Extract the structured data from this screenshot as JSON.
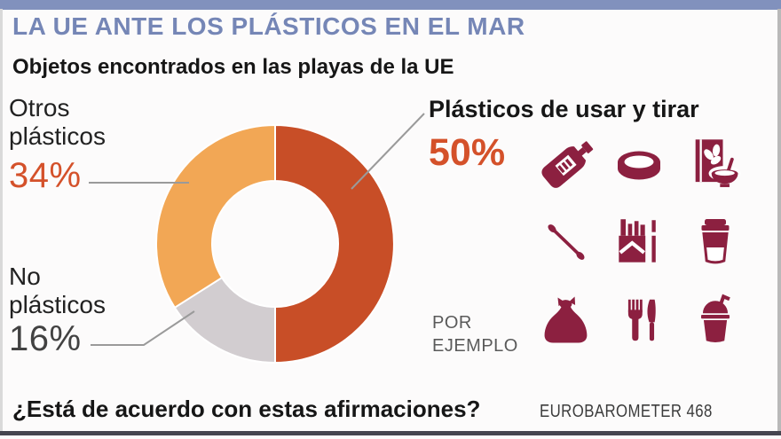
{
  "colors": {
    "top_bar": "#8191bd",
    "title": "#7586b6",
    "accent": "#d4512a",
    "icon": "#8c2040",
    "text_dark": "#161616",
    "text_gray": "#5a5a5a",
    "line": "#9a9a9a",
    "bg": "#fcfbfb"
  },
  "header": {
    "title": "LA UE ANTE LOS PLÁSTICOS EN EL MAR",
    "subtitle": "Objetos encontrados en las playas de la UE"
  },
  "chart_data": {
    "type": "pie",
    "donut": true,
    "title": "Objetos encontrados en las playas de la UE",
    "unit": "%",
    "start_angle_deg": 0,
    "direction": "clockwise",
    "inner_radius_ratio": 0.53,
    "slices": [
      {
        "label": "Plásticos de usar y tirar",
        "value": 50,
        "color": "#c84e27"
      },
      {
        "label": "No plásticos",
        "value": 16,
        "color": "#d2cdd0"
      },
      {
        "label": "Otros plásticos",
        "value": 34,
        "color": "#f2a755"
      }
    ]
  },
  "callouts": {
    "other": {
      "line1": "Otros",
      "line2": "plásticos",
      "pct": "34%"
    },
    "non_plastics": {
      "line1": "No",
      "line2": "plásticos",
      "pct": "16%"
    },
    "single_use": {
      "label": "Plásticos de usar y tirar",
      "pct": "50%"
    }
  },
  "examples": {
    "caption_line1": "POR",
    "caption_line2": "EJEMPLO",
    "icons": [
      "bottle",
      "jar-lid",
      "cereal-box",
      "cotton-swab",
      "cigarette-pack",
      "coffee-cup",
      "trash-bag",
      "cutlery",
      "drink-cup"
    ]
  },
  "footer": {
    "question": "¿Está de acuerdo con estas afirmaciones?",
    "source": "EUROBAROMETER 468"
  }
}
